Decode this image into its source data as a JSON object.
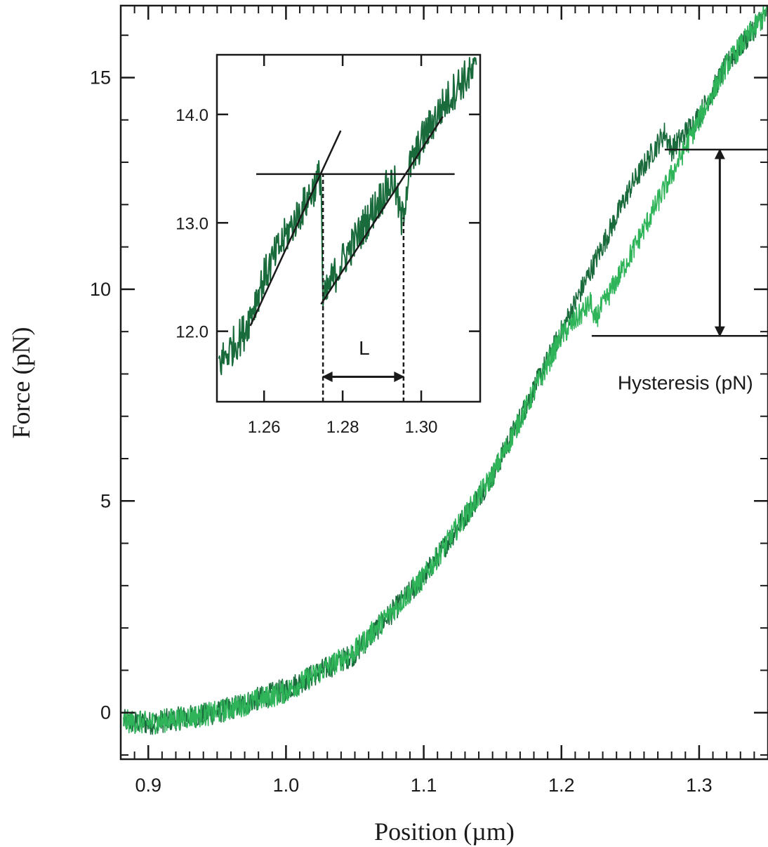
{
  "chart_data": [
    {
      "type": "line",
      "xlabel": "Position (µm)",
      "ylabel": "Force (pN)",
      "xlim": [
        0.88,
        1.35
      ],
      "ylim": [
        -1.1,
        16.7
      ],
      "xticks": [
        0.9,
        1.0,
        1.1,
        1.2,
        1.3
      ],
      "xtick_labels": [
        "0.9",
        "1.0",
        "1.1",
        "1.2",
        "1.3"
      ],
      "yticks": [
        0,
        5,
        10,
        15
      ],
      "ytick_labels": [
        "0",
        "5",
        "10",
        "15"
      ],
      "grid": false,
      "series": [
        {
          "color": "#1a6b3c",
          "style": "noisy",
          "points": [
            [
              0.882,
              -0.2
            ],
            [
              0.9,
              -0.25
            ],
            [
              0.95,
              0.0
            ],
            [
              1.0,
              0.55
            ],
            [
              1.05,
              1.4
            ],
            [
              1.1,
              3.2
            ],
            [
              1.15,
              5.6
            ],
            [
              1.2,
              9.0
            ],
            [
              1.25,
              12.4
            ],
            [
              1.275,
              13.7
            ],
            [
              1.28,
              13.3
            ],
            [
              1.3,
              14.1
            ],
            [
              1.32,
              15.3
            ],
            [
              1.35,
              16.6
            ]
          ]
        },
        {
          "color": "#2fb45a",
          "style": "noisy",
          "points": [
            [
              0.882,
              -0.2
            ],
            [
              0.9,
              -0.25
            ],
            [
              0.95,
              0.0
            ],
            [
              1.0,
              0.5
            ],
            [
              1.05,
              1.45
            ],
            [
              1.1,
              3.2
            ],
            [
              1.15,
              5.6
            ],
            [
              1.2,
              8.9
            ],
            [
              1.222,
              9.7
            ],
            [
              1.223,
              9.2
            ],
            [
              1.25,
              10.8
            ],
            [
              1.28,
              12.7
            ],
            [
              1.3,
              14.0
            ],
            [
              1.32,
              15.3
            ],
            [
              1.35,
              16.6
            ]
          ]
        }
      ],
      "annotations": [
        {
          "type": "hline",
          "y": 13.3,
          "x_from": 1.275
        },
        {
          "type": "hline",
          "y": 8.9,
          "x_from": 1.222
        },
        {
          "type": "double-arrow",
          "x": 1.315,
          "y_from": 8.9,
          "y_to": 13.3
        },
        {
          "type": "text",
          "text": "Hysteresis (pN)",
          "x": 1.29,
          "y": 7.8
        }
      ]
    },
    {
      "type": "line",
      "title": "",
      "xlim": [
        1.248,
        1.315
      ],
      "ylim": [
        11.35,
        14.55
      ],
      "xticks": [
        1.26,
        1.28,
        1.3
      ],
      "xtick_labels": [
        "1.26",
        "1.28",
        "1.30"
      ],
      "yticks": [
        12.0,
        13.0,
        14.0
      ],
      "ytick_labels": [
        "12.0",
        "13.0",
        "14.0"
      ],
      "grid": false,
      "series": [
        {
          "color": "#1a6b3c",
          "style": "noisy",
          "points": [
            [
              1.2485,
              11.7
            ],
            [
              1.255,
              12.0
            ],
            [
              1.26,
              12.5
            ],
            [
              1.265,
              12.85
            ],
            [
              1.27,
              13.15
            ],
            [
              1.2745,
              13.45
            ],
            [
              1.275,
              12.25
            ],
            [
              1.277,
              12.45
            ],
            [
              1.28,
              12.65
            ],
            [
              1.285,
              12.95
            ],
            [
              1.29,
              13.25
            ],
            [
              1.293,
              13.4
            ],
            [
              1.295,
              13.0
            ],
            [
              1.297,
              13.5
            ],
            [
              1.3,
              13.75
            ],
            [
              1.305,
              14.05
            ],
            [
              1.31,
              14.3
            ],
            [
              1.314,
              14.4
            ]
          ]
        }
      ],
      "annotations": [
        {
          "type": "line",
          "x1": 1.2565,
          "y1": 12.05,
          "x2": 1.2795,
          "y2": 13.85
        },
        {
          "type": "line",
          "x1": 1.2745,
          "y1": 12.25,
          "x2": 1.3055,
          "y2": 13.98
        },
        {
          "type": "hline",
          "y": 13.45,
          "x_from": 1.258,
          "x_to": 1.3085
        },
        {
          "type": "vline-dashed",
          "x": 1.275,
          "y_from": 11.35,
          "y_to": 13.45
        },
        {
          "type": "vline-dashed",
          "x": 1.2955,
          "y_from": 11.35,
          "y_to": 13.05
        },
        {
          "type": "double-arrow",
          "y": 11.58,
          "x_from": 1.275,
          "x_to": 1.2955
        },
        {
          "type": "text",
          "text": "L",
          "x": 1.2855,
          "y": 11.85
        }
      ]
    }
  ],
  "annotation_text": {
    "hysteresis_label": "Hysteresis (pN)",
    "inset_length_label": "L"
  }
}
